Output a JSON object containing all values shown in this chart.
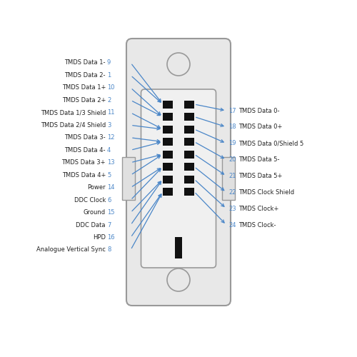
{
  "bg_color": "#ffffff",
  "connector_outer_face": "#e8e8e8",
  "connector_inner_face": "#f0f0f0",
  "connector_border": "#999999",
  "pin_color": "#111111",
  "line_color": "#4a86c8",
  "text_color": "#222222",
  "num_color": "#4a86c8",
  "left_labels": [
    {
      "text": "TMDS Data 1-",
      "num": "9",
      "pin_row": 0
    },
    {
      "text": "TMDS Data 2-",
      "num": "1",
      "pin_row": 0
    },
    {
      "text": "TMDS Data 1+",
      "num": "10",
      "pin_row": 1
    },
    {
      "text": "TMDS Data 2+",
      "num": "2",
      "pin_row": 1
    },
    {
      "text": "TMDS Data 1/3 Shield",
      "num": "11",
      "pin_row": 2
    },
    {
      "text": "TMDS Data 2/4 Shield",
      "num": "3",
      "pin_row": 2
    },
    {
      "text": "TMDS Data 3-",
      "num": "12",
      "pin_row": 3
    },
    {
      "text": "TMDS Data 4-",
      "num": "4",
      "pin_row": 3
    },
    {
      "text": "TMDS Data 3+",
      "num": "13",
      "pin_row": 4
    },
    {
      "text": "TMDS Data 4+",
      "num": "5",
      "pin_row": 4
    },
    {
      "text": "Power",
      "num": "14",
      "pin_row": 5
    },
    {
      "text": "DDC Clock",
      "num": "6",
      "pin_row": 5
    },
    {
      "text": "Ground",
      "num": "15",
      "pin_row": 6
    },
    {
      "text": "DDC Data",
      "num": "7",
      "pin_row": 6
    },
    {
      "text": "HPD",
      "num": "16",
      "pin_row": 7
    },
    {
      "text": "Analogue Vertical Sync",
      "num": "8",
      "pin_row": 7
    }
  ],
  "right_labels": [
    {
      "text": "TMDS Data 0-",
      "num": "17",
      "pin_row": 0
    },
    {
      "text": "TMDS Data 0+",
      "num": "18",
      "pin_row": 1
    },
    {
      "text": "TMDS Data 0/Shield 5",
      "num": "19",
      "pin_row": 2
    },
    {
      "text": "TMDS Data 5-",
      "num": "20",
      "pin_row": 3
    },
    {
      "text": "TMDS Data 5+",
      "num": "21",
      "pin_row": 4
    },
    {
      "text": "TMDS Clock Shield",
      "num": "22",
      "pin_row": 5
    },
    {
      "text": "TMDS Clock+",
      "num": "23",
      "pin_row": 6
    },
    {
      "text": "TMDS Clock-",
      "num": "24",
      "pin_row": 7
    }
  ],
  "fig_w": 5.0,
  "fig_h": 5.0,
  "dpi": 100
}
